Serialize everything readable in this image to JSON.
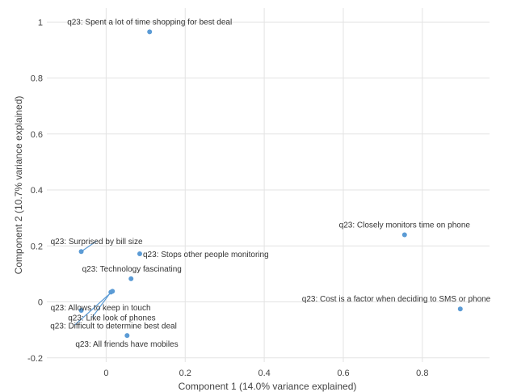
{
  "chart_data": {
    "type": "scatter",
    "title": "",
    "xlabel": "Component 1 (14.0% variance explained)",
    "ylabel": "Component 2 (10.7% variance explained)",
    "xlim": [
      -0.15,
      0.97
    ],
    "ylim": [
      -0.215,
      1.05
    ],
    "xticks": [
      0,
      0.2,
      0.4,
      0.6,
      0.8
    ],
    "yticks": [
      -0.2,
      0,
      0.2,
      0.4,
      0.6,
      0.8,
      1
    ],
    "xtick_labels": [
      "0",
      "0.2",
      "0.4",
      "0.6",
      "0.8"
    ],
    "ytick_labels": [
      "-0.2",
      "0",
      "0.2",
      "0.4",
      "0.6",
      "0.8",
      "1"
    ],
    "grid": true,
    "marker_color": "#5b9bd5",
    "leader_color": "#5b9bd5",
    "points": [
      {
        "label": "q23: Spent a lot of time shopping for best deal",
        "x": 0.11,
        "y": 0.965
      },
      {
        "label": "q23: Closely monitors time on phone",
        "x": 0.755,
        "y": 0.24
      },
      {
        "label": "q23: Surprised by bill size",
        "x": -0.063,
        "y": 0.18
      },
      {
        "label": "q23: Stops other people monitoring",
        "x": 0.085,
        "y": 0.172
      },
      {
        "label": "q23: Technology fascinating",
        "x": 0.063,
        "y": 0.083
      },
      {
        "label": "q23: Allows to keep in touch",
        "x": -0.063,
        "y": -0.03
      },
      {
        "label": "q23: Cost is a factor when deciding to SMS or phone",
        "x": 0.896,
        "y": -0.025
      },
      {
        "label": "q23: Like look of phones",
        "x": 0.012,
        "y": 0.035
      },
      {
        "label": "q23: Difficult to determine best deal",
        "x": 0.016,
        "y": 0.038
      },
      {
        "label": "q23: All friends have mobiles",
        "x": 0.053,
        "y": -0.12
      }
    ]
  }
}
